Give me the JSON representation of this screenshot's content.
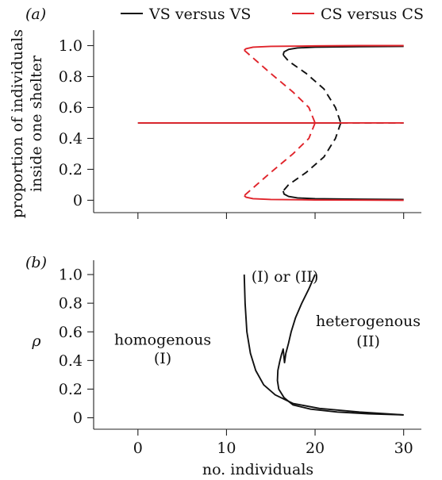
{
  "colors": {
    "vs": "#111111",
    "cs": "#e0242b",
    "axis": "#222222"
  },
  "chart_data": [
    {
      "panel": "(a)",
      "type": "line",
      "title": "",
      "xlabel": "",
      "ylabel": [
        "proportion of individuals",
        "inside one shelter"
      ],
      "xlim": [
        -5,
        32
      ],
      "ylim": [
        -0.08,
        1.1
      ],
      "xticks": [
        0,
        10,
        20,
        30
      ],
      "yticks": [
        "0",
        "0.2",
        "0.4",
        "0.6",
        "0.8",
        "1.0"
      ],
      "legend": "top",
      "series": [
        {
          "name": "VS versus VS",
          "color": "#111111",
          "segments": [
            {
              "style": "solid",
              "x": [
                0,
                10,
                20,
                22.9
              ],
              "y": [
                0.5,
                0.5,
                0.5,
                0.5
              ]
            },
            {
              "style": "dashed",
              "x": [
                22.9,
                30
              ],
              "y": [
                0.5,
                0.5
              ]
            },
            {
              "style": "solid",
              "x": [
                30,
                25,
                20,
                18,
                17,
                16.5,
                16.4
              ],
              "y": [
                0.995,
                0.993,
                0.99,
                0.985,
                0.975,
                0.96,
                0.94
              ]
            },
            {
              "style": "dashed",
              "x": [
                16.4,
                17,
                19,
                21,
                22.3,
                22.9
              ],
              "y": [
                0.94,
                0.9,
                0.82,
                0.72,
                0.6,
                0.5
              ]
            },
            {
              "style": "dashed",
              "x": [
                22.9,
                22.3,
                21,
                19,
                17,
                16.4
              ],
              "y": [
                0.5,
                0.4,
                0.28,
                0.18,
                0.1,
                0.06
              ]
            },
            {
              "style": "solid",
              "x": [
                16.4,
                16.5,
                17,
                18,
                20,
                25,
                30
              ],
              "y": [
                0.06,
                0.04,
                0.025,
                0.015,
                0.01,
                0.007,
                0.005
              ]
            }
          ]
        },
        {
          "name": "CS versus CS",
          "color": "#e0242b",
          "segments": [
            {
              "style": "solid",
              "x": [
                0,
                10,
                20
              ],
              "y": [
                0.5,
                0.5,
                0.5
              ]
            },
            {
              "style": "solid",
              "x": [
                20,
                30
              ],
              "y": [
                0.5,
                0.5
              ]
            },
            {
              "style": "solid",
              "x": [
                30,
                25,
                20,
                15,
                13,
                12.2,
                12.0
              ],
              "y": [
                1.0,
                1.0,
                0.998,
                0.995,
                0.99,
                0.98,
                0.97
              ]
            },
            {
              "style": "dashed",
              "x": [
                12.0,
                13,
                15,
                17.5,
                19.3,
                20
              ],
              "y": [
                0.97,
                0.92,
                0.82,
                0.7,
                0.6,
                0.5
              ]
            },
            {
              "style": "dashed",
              "x": [
                20,
                19.3,
                17.5,
                15,
                13,
                12.0
              ],
              "y": [
                0.5,
                0.4,
                0.3,
                0.18,
                0.08,
                0.03
              ]
            },
            {
              "style": "solid",
              "x": [
                12.0,
                12.2,
                13,
                15,
                20,
                25,
                30
              ],
              "y": [
                0.03,
                0.02,
                0.01,
                0.005,
                0.002,
                0.001,
                0.0
              ]
            }
          ]
        }
      ]
    },
    {
      "panel": "(b)",
      "type": "line",
      "title": "",
      "xlabel": "no. individuals",
      "ylabel": "ρ",
      "xlim": [
        -5,
        32
      ],
      "ylim": [
        -0.08,
        1.1
      ],
      "xticks": [
        "0",
        "10",
        "20",
        "30"
      ],
      "yticks": [
        "0",
        "0.2",
        "0.4",
        "0.6",
        "0.8",
        "1.0"
      ],
      "series": [
        {
          "color": "#111111",
          "segments": [
            {
              "style": "solid",
              "x": [
                12.0,
                12.1,
                12.3,
                12.7,
                13.3,
                14.2,
                15.5,
                17.5,
                20.5,
                25,
                30
              ],
              "y": [
                1.0,
                0.8,
                0.6,
                0.45,
                0.33,
                0.23,
                0.16,
                0.1,
                0.065,
                0.04,
                0.02
              ]
            },
            {
              "style": "solid",
              "x": [
                20.0,
                19.3,
                18.5,
                17.8,
                17.3,
                17.0,
                16.7,
                16.55,
                16.4,
                16.2,
                16.0,
                15.8,
                15.75,
                15.9,
                16.5,
                17.5,
                19.5,
                22.5,
                26,
                30
              ],
              "y": [
                1.0,
                0.9,
                0.8,
                0.7,
                0.6,
                0.52,
                0.45,
                0.385,
                0.48,
                0.44,
                0.39,
                0.33,
                0.26,
                0.2,
                0.14,
                0.09,
                0.06,
                0.04,
                0.028,
                0.02
              ]
            }
          ]
        }
      ],
      "annotations": [
        {
          "text": "homogenous",
          "x": 2.8,
          "y": 0.51
        },
        {
          "text": "(I)",
          "x": 2.8,
          "y": 0.38
        },
        {
          "text": "(I) or (II)",
          "x": 16.6,
          "y": 0.95
        },
        {
          "text": "heterogenous",
          "x": 26,
          "y": 0.64
        },
        {
          "text": "(II)",
          "x": 26,
          "y": 0.5
        }
      ]
    }
  ]
}
